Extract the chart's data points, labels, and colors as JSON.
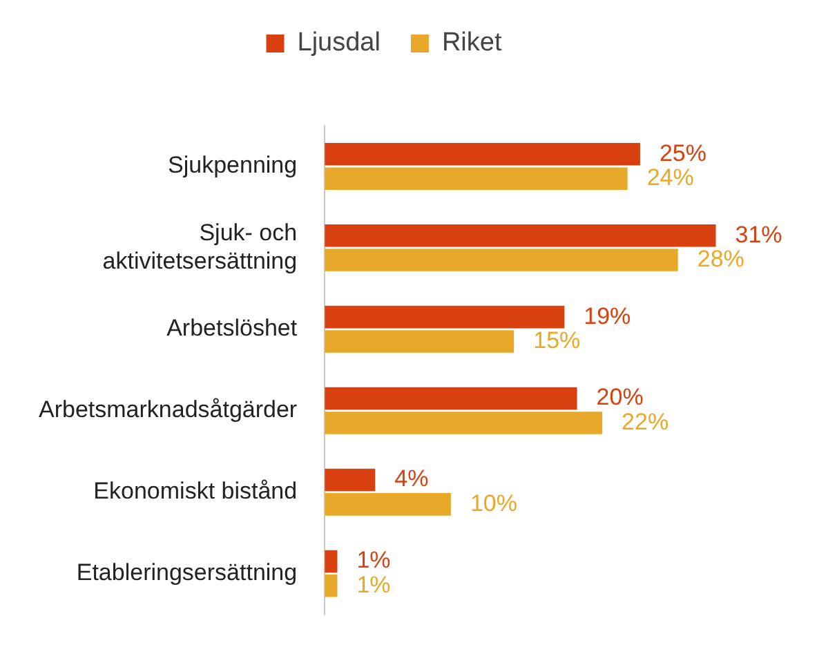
{
  "chart_data": {
    "type": "bar",
    "orientation": "horizontal",
    "categories": [
      "Sjukpenning",
      "Sjuk- och aktivitetsersättning",
      "Arbetslöshet",
      "Arbetsmarknadsåtgärder",
      "Ekonomiskt bistånd",
      "Etableringsersättning"
    ],
    "series": [
      {
        "name": "Ljusdal",
        "color": "#d9400f",
        "values": [
          25,
          31,
          19,
          20,
          4,
          1
        ],
        "value_labels": [
          "25%",
          "31%",
          "19%",
          "20%",
          "4%",
          "1%"
        ]
      },
      {
        "name": "Riket",
        "color": "#e8a82a",
        "values": [
          24,
          28,
          15,
          22,
          10,
          1
        ],
        "value_labels": [
          "24%",
          "28%",
          "15%",
          "22%",
          "10%",
          "1%"
        ]
      }
    ],
    "legend": "top"
  }
}
